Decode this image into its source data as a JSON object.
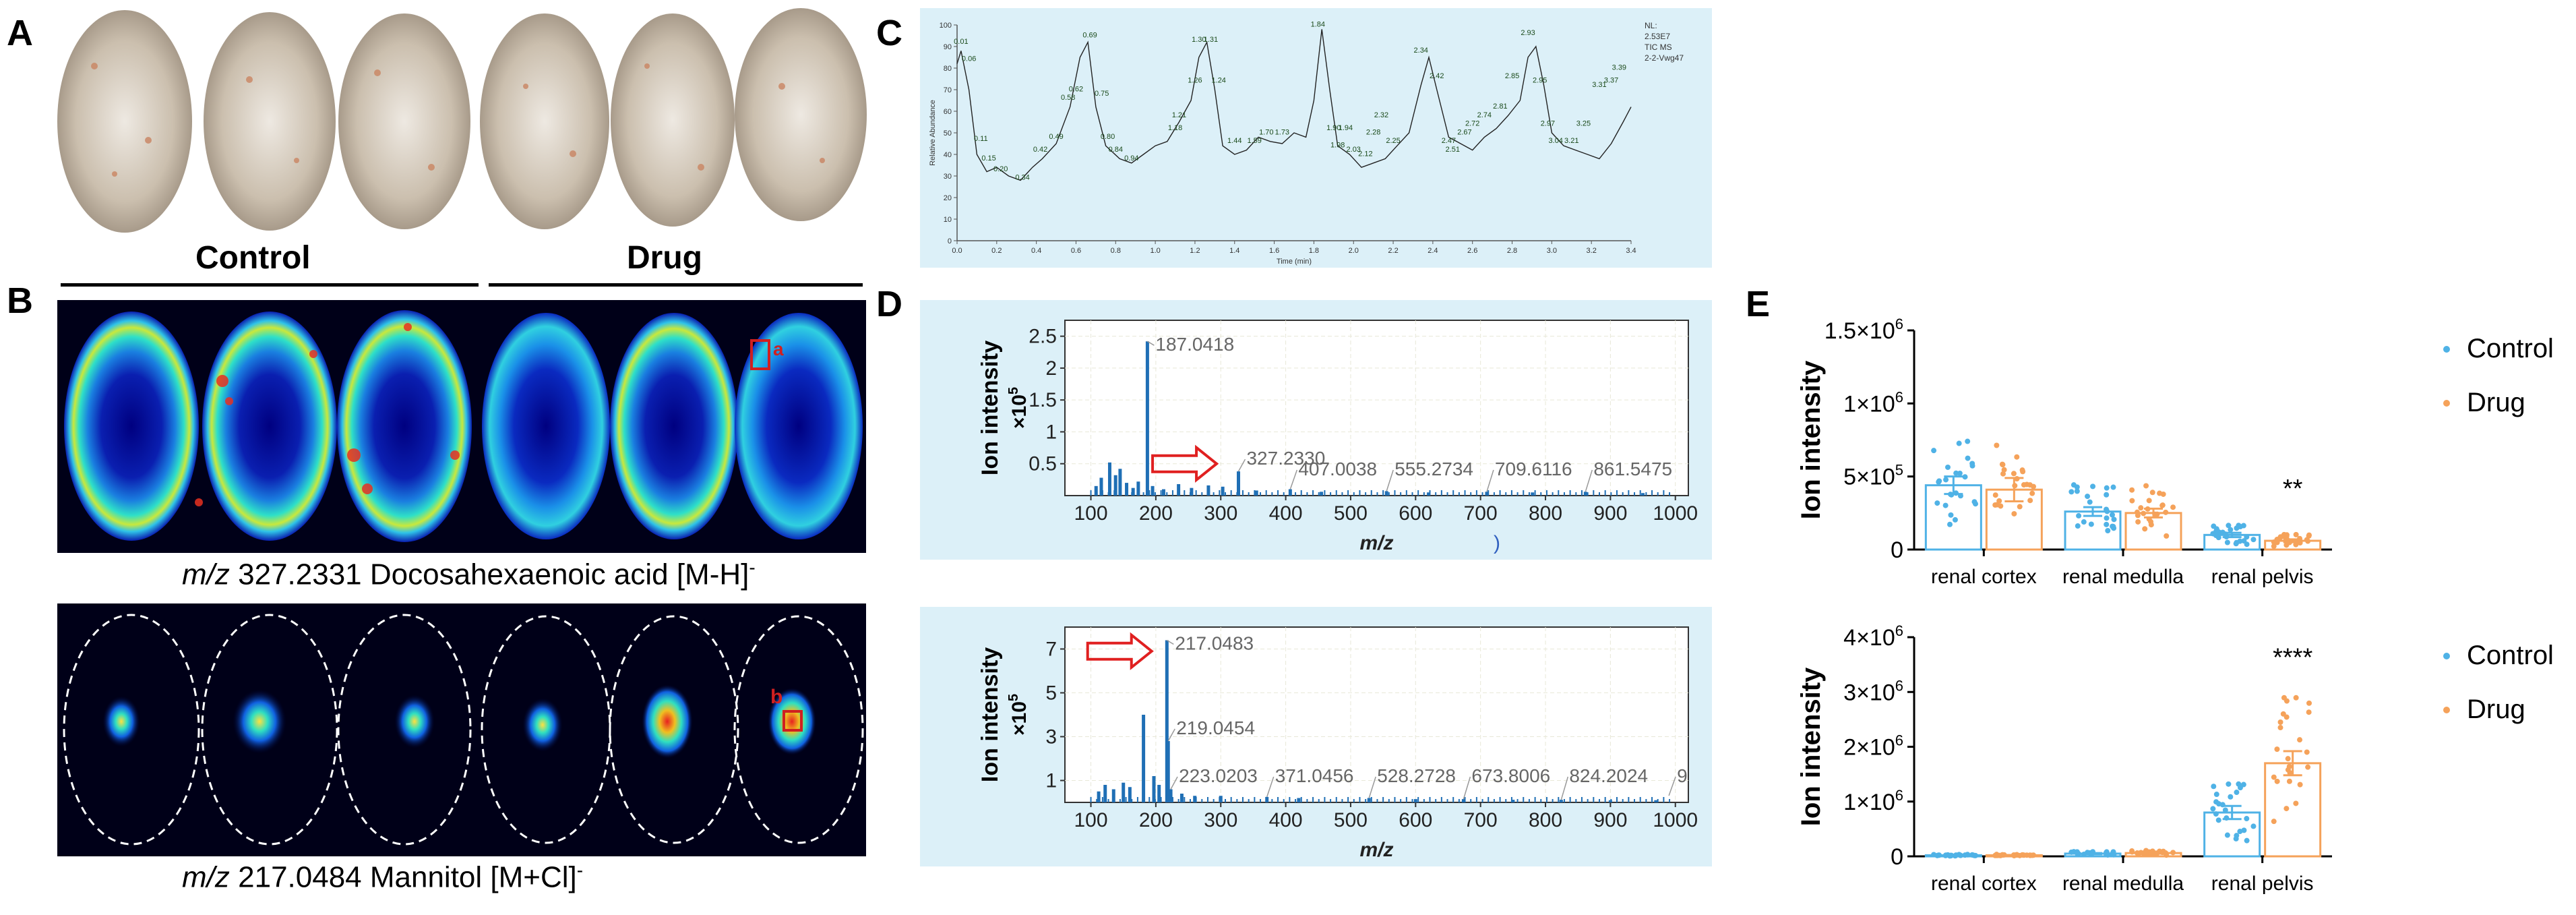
{
  "panels": {
    "A": {
      "letter": "A"
    },
    "B": {
      "letter": "B",
      "groups": [
        "Control",
        "Drug"
      ],
      "caption1": {
        "mz": "m/z",
        "text": "327.2331 Docosahexaenoic acid [M-H]",
        "sup": "-"
      },
      "caption2": {
        "mz": "m/z",
        "text": "217.0484 Mannitol [M+Cl]",
        "sup": "-"
      },
      "roi_a": "a",
      "roi_b": "b"
    },
    "C": {
      "letter": "C"
    },
    "D": {
      "letter": "D"
    },
    "E": {
      "letter": "E"
    }
  },
  "colors": {
    "control": "#4fb2e6",
    "drug": "#f5a25a",
    "spectrum": "#1f6fb5",
    "panel_bg": "#dcf0f8",
    "arrow": "#e02020"
  },
  "chart_data": [
    {
      "id": "C",
      "type": "line",
      "title": "",
      "xlabel": "Time (min)",
      "ylabel": "Relative Abundance",
      "xlim": [
        0,
        3.4
      ],
      "ylim": [
        0,
        100
      ],
      "xticks": [
        "0.0",
        "0.2",
        "0.4",
        "0.6",
        "0.8",
        "1.0",
        "1.2",
        "1.4",
        "1.6",
        "1.8",
        "2.0",
        "2.2",
        "2.4",
        "2.6",
        "2.8",
        "3.0",
        "3.2",
        "3.4"
      ],
      "yticks": [
        "0",
        "10",
        "20",
        "30",
        "40",
        "50",
        "60",
        "70",
        "80",
        "90",
        "100"
      ],
      "header": [
        "NL:",
        "2.53E7",
        "TIC MS",
        "2-2-Vwg47"
      ],
      "x": [
        0.0,
        0.02,
        0.06,
        0.1,
        0.15,
        0.2,
        0.26,
        0.32,
        0.38,
        0.43,
        0.5,
        0.57,
        0.62,
        0.66,
        0.7,
        0.75,
        0.82,
        0.88,
        0.94,
        1.0,
        1.06,
        1.12,
        1.18,
        1.22,
        1.26,
        1.3,
        1.34,
        1.4,
        1.46,
        1.52,
        1.58,
        1.64,
        1.7,
        1.76,
        1.8,
        1.84,
        1.88,
        1.92,
        1.98,
        2.04,
        2.1,
        2.16,
        2.22,
        2.28,
        2.34,
        2.38,
        2.42,
        2.48,
        2.54,
        2.6,
        2.66,
        2.72,
        2.78,
        2.84,
        2.88,
        2.92,
        2.96,
        3.0,
        3.06,
        3.12,
        3.18,
        3.24,
        3.3,
        3.36,
        3.4
      ],
      "y": [
        82,
        88,
        70,
        40,
        32,
        34,
        30,
        28,
        34,
        38,
        45,
        62,
        85,
        92,
        62,
        44,
        38,
        36,
        40,
        44,
        46,
        55,
        65,
        85,
        92,
        70,
        44,
        40,
        42,
        48,
        46,
        45,
        50,
        48,
        65,
        98,
        70,
        44,
        40,
        34,
        36,
        38,
        44,
        50,
        72,
        85,
        70,
        48,
        45,
        42,
        48,
        52,
        58,
        65,
        85,
        90,
        72,
        50,
        44,
        42,
        40,
        38,
        45,
        55,
        62
      ],
      "labels": [
        {
          "x": 0.02,
          "y": 90,
          "t": "0.01"
        },
        {
          "x": 0.06,
          "y": 82,
          "t": "0.06"
        },
        {
          "x": 0.12,
          "y": 45,
          "t": "0.11"
        },
        {
          "x": 0.16,
          "y": 36,
          "t": "0.15"
        },
        {
          "x": 0.22,
          "y": 31,
          "t": "0.20"
        },
        {
          "x": 0.33,
          "y": 27,
          "t": "0.34"
        },
        {
          "x": 0.42,
          "y": 40,
          "t": "0.42"
        },
        {
          "x": 0.5,
          "y": 46,
          "t": "0.49"
        },
        {
          "x": 0.56,
          "y": 64,
          "t": "0.58"
        },
        {
          "x": 0.6,
          "y": 68,
          "t": "0.62"
        },
        {
          "x": 0.67,
          "y": 93,
          "t": "0.69"
        },
        {
          "x": 0.73,
          "y": 66,
          "t": "0.75"
        },
        {
          "x": 0.76,
          "y": 46,
          "t": "0.80"
        },
        {
          "x": 0.8,
          "y": 40,
          "t": "0.84"
        },
        {
          "x": 0.88,
          "y": 36,
          "t": "0.94"
        },
        {
          "x": 1.12,
          "y": 56,
          "t": "1.21"
        },
        {
          "x": 1.1,
          "y": 50,
          "t": "1.18"
        },
        {
          "x": 1.2,
          "y": 72,
          "t": "1.26"
        },
        {
          "x": 1.22,
          "y": 91,
          "t": "1.30"
        },
        {
          "x": 1.28,
          "y": 91,
          "t": "1.31"
        },
        {
          "x": 1.32,
          "y": 72,
          "t": "1.24"
        },
        {
          "x": 1.4,
          "y": 44,
          "t": "1.44"
        },
        {
          "x": 1.5,
          "y": 44,
          "t": "1.59"
        },
        {
          "x": 1.56,
          "y": 48,
          "t": "1.70"
        },
        {
          "x": 1.64,
          "y": 48,
          "t": "1.73"
        },
        {
          "x": 1.82,
          "y": 98,
          "t": "1.84"
        },
        {
          "x": 1.9,
          "y": 50,
          "t": "1.90"
        },
        {
          "x": 1.96,
          "y": 50,
          "t": "1.94"
        },
        {
          "x": 1.92,
          "y": 42,
          "t": "1.98"
        },
        {
          "x": 2.0,
          "y": 40,
          "t": "2.03"
        },
        {
          "x": 2.06,
          "y": 38,
          "t": "2.12"
        },
        {
          "x": 2.1,
          "y": 48,
          "t": "2.28"
        },
        {
          "x": 2.14,
          "y": 56,
          "t": "2.32"
        },
        {
          "x": 2.2,
          "y": 44,
          "t": "2.25"
        },
        {
          "x": 2.34,
          "y": 86,
          "t": "2.34"
        },
        {
          "x": 2.42,
          "y": 74,
          "t": "2.42"
        },
        {
          "x": 2.48,
          "y": 44,
          "t": "2.47"
        },
        {
          "x": 2.5,
          "y": 40,
          "t": "2.51"
        },
        {
          "x": 2.56,
          "y": 48,
          "t": "2.67"
        },
        {
          "x": 2.6,
          "y": 52,
          "t": "2.72"
        },
        {
          "x": 2.66,
          "y": 56,
          "t": "2.74"
        },
        {
          "x": 2.74,
          "y": 60,
          "t": "2.81"
        },
        {
          "x": 2.8,
          "y": 74,
          "t": "2.85"
        },
        {
          "x": 2.88,
          "y": 94,
          "t": "2.93"
        },
        {
          "x": 2.94,
          "y": 72,
          "t": "2.95"
        },
        {
          "x": 2.98,
          "y": 52,
          "t": "2.97"
        },
        {
          "x": 3.02,
          "y": 44,
          "t": "3.04"
        },
        {
          "x": 3.1,
          "y": 44,
          "t": "3.21"
        },
        {
          "x": 3.16,
          "y": 52,
          "t": "3.25"
        },
        {
          "x": 3.24,
          "y": 70,
          "t": "3.31"
        },
        {
          "x": 3.3,
          "y": 72,
          "t": "3.37"
        },
        {
          "x": 3.34,
          "y": 78,
          "t": "3.39"
        }
      ]
    },
    {
      "id": "D1",
      "type": "bar",
      "xlabel": "m/z",
      "ylabel": "Ion intensity",
      "yunit": "×10^5",
      "xlim": [
        60,
        1020
      ],
      "ylim": [
        0,
        2.75
      ],
      "xticks": [
        "100",
        "200",
        "300",
        "400",
        "500",
        "600",
        "700",
        "800",
        "900",
        "1000"
      ],
      "yticks": [
        "0.5",
        "1",
        "1.5",
        "2",
        "2.5"
      ],
      "peaks": [
        {
          "mz": 108,
          "i": 0.15
        },
        {
          "mz": 116,
          "i": 0.28
        },
        {
          "mz": 129,
          "i": 0.52
        },
        {
          "mz": 138,
          "i": 0.32
        },
        {
          "mz": 145,
          "i": 0.42
        },
        {
          "mz": 155,
          "i": 0.2
        },
        {
          "mz": 165,
          "i": 0.12
        },
        {
          "mz": 173,
          "i": 0.22
        },
        {
          "mz": 187.0418,
          "i": 2.42
        },
        {
          "mz": 195,
          "i": 0.15
        },
        {
          "mz": 212,
          "i": 0.1
        },
        {
          "mz": 235,
          "i": 0.18
        },
        {
          "mz": 255,
          "i": 0.12
        },
        {
          "mz": 281,
          "i": 0.16
        },
        {
          "mz": 303,
          "i": 0.14
        },
        {
          "mz": 327.233,
          "i": 0.38
        },
        {
          "mz": 355,
          "i": 0.08
        },
        {
          "mz": 407.0038,
          "i": 0.1
        },
        {
          "mz": 455,
          "i": 0.06
        },
        {
          "mz": 555.2734,
          "i": 0.07
        },
        {
          "mz": 620,
          "i": 0.05
        },
        {
          "mz": 709.6116,
          "i": 0.06
        },
        {
          "mz": 780,
          "i": 0.05
        },
        {
          "mz": 861.5475,
          "i": 0.06
        },
        {
          "mz": 950,
          "i": 0.04
        }
      ],
      "peak_labels": [
        {
          "mz": 187.0418,
          "t": "187.0418"
        },
        {
          "mz": 327.233,
          "t": "327.2330"
        },
        {
          "mz": 407.0038,
          "t": "407.0038"
        },
        {
          "mz": 555.2734,
          "t": "555.2734"
        },
        {
          "mz": 709.6116,
          "t": "709.6116"
        },
        {
          "mz": 861.5475,
          "t": "861.5475"
        }
      ],
      "stray": ")"
    },
    {
      "id": "D2",
      "type": "bar",
      "xlabel": "m/z",
      "ylabel": "Ion intensity",
      "yunit": "×10^5",
      "xlim": [
        60,
        1020
      ],
      "ylim": [
        0,
        8
      ],
      "xticks": [
        "100",
        "200",
        "300",
        "400",
        "500",
        "600",
        "700",
        "800",
        "900",
        "1000"
      ],
      "yticks": [
        "1",
        "3",
        "5",
        "7"
      ],
      "peaks": [
        {
          "mz": 112,
          "i": 0.5
        },
        {
          "mz": 122,
          "i": 0.8
        },
        {
          "mz": 135,
          "i": 0.6
        },
        {
          "mz": 150,
          "i": 0.9
        },
        {
          "mz": 160,
          "i": 0.7
        },
        {
          "mz": 181,
          "i": 4.0
        },
        {
          "mz": 197,
          "i": 1.2
        },
        {
          "mz": 205,
          "i": 0.8
        },
        {
          "mz": 217.0483,
          "i": 7.4
        },
        {
          "mz": 219.0454,
          "i": 2.8
        },
        {
          "mz": 223.0203,
          "i": 0.6
        },
        {
          "mz": 240,
          "i": 0.4
        },
        {
          "mz": 260,
          "i": 0.3
        },
        {
          "mz": 300,
          "i": 0.3
        },
        {
          "mz": 371.0456,
          "i": 0.25
        },
        {
          "mz": 420,
          "i": 0.2
        },
        {
          "mz": 528.2728,
          "i": 0.2
        },
        {
          "mz": 600,
          "i": 0.15
        },
        {
          "mz": 673.8006,
          "i": 0.15
        },
        {
          "mz": 750,
          "i": 0.12
        },
        {
          "mz": 824.2024,
          "i": 0.12
        },
        {
          "mz": 900,
          "i": 0.1
        },
        {
          "mz": 970,
          "i": 0.1
        }
      ],
      "peak_labels": [
        {
          "mz": 217.0483,
          "t": "217.0483"
        },
        {
          "mz": 219.0454,
          "t": "219.0454"
        },
        {
          "mz": 223.0203,
          "t": "223.0203"
        },
        {
          "mz": 371.0456,
          "t": "371.0456"
        },
        {
          "mz": 528.2728,
          "t": "528.2728"
        },
        {
          "mz": 673.8006,
          "t": "673.8006"
        },
        {
          "mz": 824.2024,
          "t": "824.2024"
        },
        {
          "mz": 990,
          "t": "9"
        }
      ]
    },
    {
      "id": "E1",
      "type": "bar",
      "ylabel": "Ion intensity",
      "ylim": [
        0,
        1500000
      ],
      "yticks": [
        {
          "v": 0,
          "t": "0"
        },
        {
          "v": 500000,
          "t": "5×10",
          "sup": "5"
        },
        {
          "v": 1000000,
          "t": "1×10",
          "sup": "6"
        },
        {
          "v": 1500000,
          "t": "1.5×10",
          "sup": "6"
        }
      ],
      "categories": [
        "renal cortex",
        "renal medulla",
        "renal pelvis"
      ],
      "series": [
        {
          "name": "Control",
          "values": [
            440000,
            260000,
            100000
          ],
          "sem": [
            60000,
            30000,
            15000
          ]
        },
        {
          "name": "Drug",
          "values": [
            410000,
            250000,
            60000
          ],
          "sem": [
            80000,
            30000,
            10000
          ]
        }
      ],
      "significance": [
        {
          "category": "renal pelvis",
          "text": "**"
        }
      ],
      "legend": "top-right"
    },
    {
      "id": "E2",
      "type": "bar",
      "ylabel": "Ion intensity",
      "ylim": [
        0,
        4000000
      ],
      "yticks": [
        {
          "v": 0,
          "t": "0"
        },
        {
          "v": 1000000,
          "t": "1×10",
          "sup": "6"
        },
        {
          "v": 2000000,
          "t": "2×10",
          "sup": "6"
        },
        {
          "v": 3000000,
          "t": "3×10",
          "sup": "6"
        },
        {
          "v": 4000000,
          "t": "4×10",
          "sup": "6"
        }
      ],
      "categories": [
        "renal cortex",
        "renal medulla",
        "renal pelvis"
      ],
      "series": [
        {
          "name": "Control",
          "values": [
            20000,
            50000,
            800000
          ],
          "sem": [
            5000,
            10000,
            120000
          ]
        },
        {
          "name": "Drug",
          "values": [
            20000,
            60000,
            1700000
          ],
          "sem": [
            5000,
            10000,
            220000
          ]
        }
      ],
      "significance": [
        {
          "category": "renal pelvis",
          "text": "****"
        }
      ],
      "legend": "top-right"
    }
  ]
}
